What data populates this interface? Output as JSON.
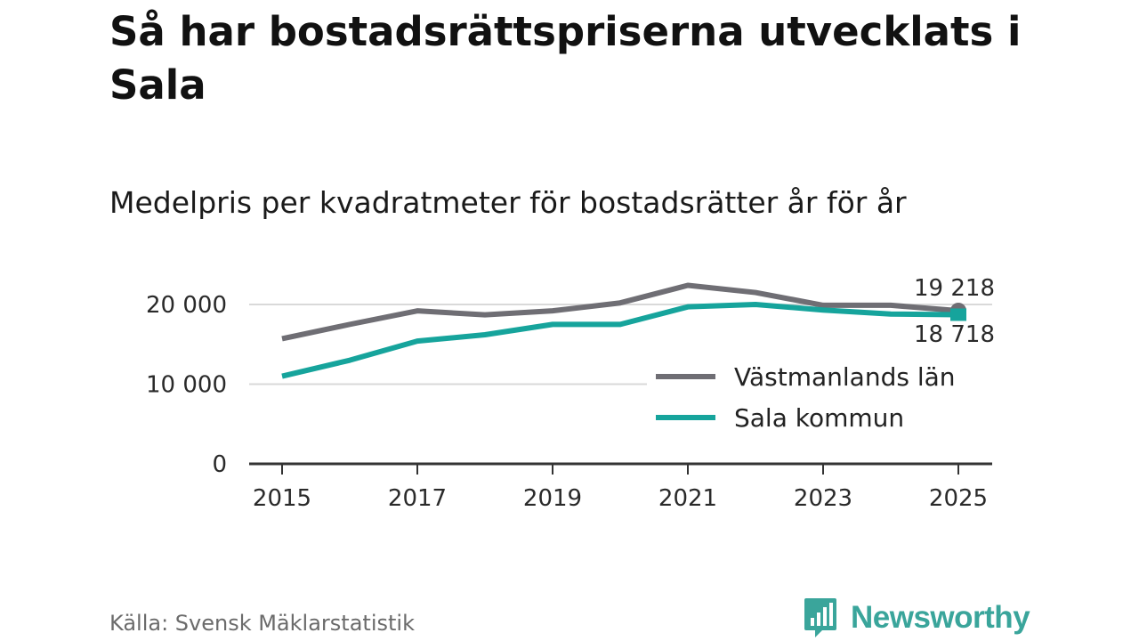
{
  "title": "Så har bostadsrättspriserna utvecklats i Sala",
  "subtitle": "Medelpris per kvadratmeter för bostadsrätter år för år",
  "source": "Källa: Svensk Mäklarstatistik",
  "brand": {
    "name": "Newsworthy",
    "color": "#3aa59b"
  },
  "chart_data": {
    "type": "line",
    "title": "Medelpris per kvadratmeter för bostadsrätter år för år",
    "xlabel": "",
    "ylabel": "",
    "x": [
      2015,
      2016,
      2017,
      2018,
      2019,
      2020,
      2021,
      2022,
      2023,
      2024,
      2025
    ],
    "x_ticks": [
      "2015",
      "2017",
      "2019",
      "2021",
      "2023",
      "2025"
    ],
    "y_ticks": [
      "0",
      "10 000",
      "20 000"
    ],
    "ylim": [
      0,
      22000
    ],
    "grid": true,
    "series": [
      {
        "name": "Västmanlands län",
        "color": "#6f6e74",
        "values": [
          15700,
          17500,
          19200,
          18700,
          19200,
          20200,
          22400,
          21500,
          19900,
          19900,
          19218
        ],
        "end_label": "19 218"
      },
      {
        "name": "Sala kommun",
        "color": "#16a49c",
        "values": [
          11000,
          13000,
          15400,
          16200,
          17500,
          17500,
          19700,
          20000,
          19300,
          18800,
          18718
        ],
        "end_label": "18 718"
      }
    ],
    "legend": "bottom-right"
  }
}
